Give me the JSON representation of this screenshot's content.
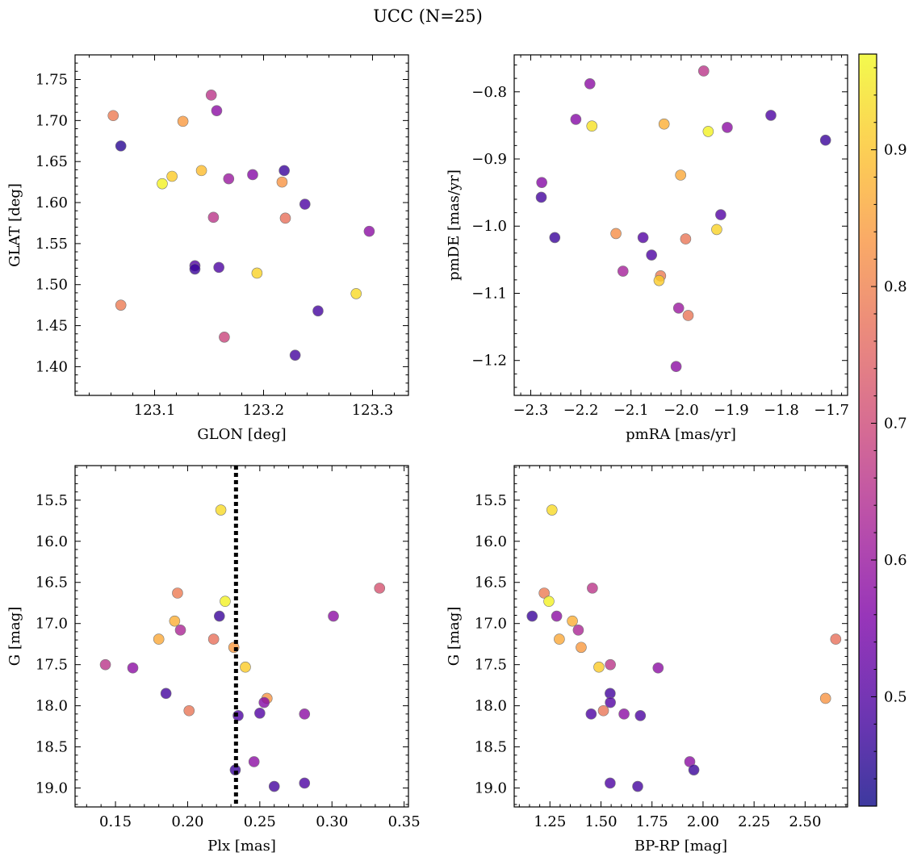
{
  "title": "UCC (N=25)",
  "colorbar": {
    "vmin": 0.42,
    "vmax": 0.97,
    "ticks": [
      0.5,
      0.6,
      0.7,
      0.8,
      0.9
    ],
    "tick_labels": [
      "0.5",
      "0.6",
      "0.7",
      "0.8",
      "0.9"
    ],
    "colormap": "plasma"
  },
  "chart_data": [
    {
      "type": "scatter",
      "id": "glon-glat",
      "xlabel": "GLON [deg]",
      "ylabel": "GLAT [deg]",
      "xlim": [
        123.027,
        123.333
      ],
      "ylim": [
        1.365,
        1.78
      ],
      "y_inverted": false,
      "xticks": [
        123.1,
        123.2,
        123.3
      ],
      "xtick_labels": [
        "123.1",
        "123.2",
        "123.3"
      ],
      "yticks": [
        1.4,
        1.45,
        1.5,
        1.55,
        1.6,
        1.65,
        1.7,
        1.75
      ],
      "ytick_labels": [
        "1.40",
        "1.45",
        "1.50",
        "1.55",
        "1.60",
        "1.65",
        "1.70",
        "1.75"
      ],
      "vline": null,
      "points": [
        {
          "x": 123.062,
          "y": 1.706,
          "c": 0.79
        },
        {
          "x": 123.069,
          "y": 1.669,
          "c": 0.45
        },
        {
          "x": 123.126,
          "y": 1.699,
          "c": 0.84
        },
        {
          "x": 123.152,
          "y": 1.731,
          "c": 0.66
        },
        {
          "x": 123.157,
          "y": 1.712,
          "c": 0.58
        },
        {
          "x": 123.107,
          "y": 1.623,
          "c": 0.96
        },
        {
          "x": 123.116,
          "y": 1.632,
          "c": 0.91
        },
        {
          "x": 123.143,
          "y": 1.639,
          "c": 0.89
        },
        {
          "x": 123.168,
          "y": 1.629,
          "c": 0.6
        },
        {
          "x": 123.19,
          "y": 1.634,
          "c": 0.57
        },
        {
          "x": 123.219,
          "y": 1.639,
          "c": 0.47
        },
        {
          "x": 123.217,
          "y": 1.625,
          "c": 0.83
        },
        {
          "x": 123.154,
          "y": 1.582,
          "c": 0.66
        },
        {
          "x": 123.22,
          "y": 1.581,
          "c": 0.77
        },
        {
          "x": 123.238,
          "y": 1.598,
          "c": 0.49
        },
        {
          "x": 123.297,
          "y": 1.565,
          "c": 0.58
        },
        {
          "x": 123.137,
          "y": 1.523,
          "c": 0.5
        },
        {
          "x": 123.137,
          "y": 1.519,
          "c": 0.47
        },
        {
          "x": 123.159,
          "y": 1.521,
          "c": 0.49
        },
        {
          "x": 123.194,
          "y": 1.514,
          "c": 0.92
        },
        {
          "x": 123.069,
          "y": 1.475,
          "c": 0.79
        },
        {
          "x": 123.285,
          "y": 1.489,
          "c": 0.93
        },
        {
          "x": 123.25,
          "y": 1.468,
          "c": 0.48
        },
        {
          "x": 123.164,
          "y": 1.436,
          "c": 0.69
        },
        {
          "x": 123.229,
          "y": 1.414,
          "c": 0.48
        }
      ]
    },
    {
      "type": "scatter",
      "id": "pm",
      "xlabel": "pmRA [mas/yr]",
      "ylabel": "pmDE [mas/yr]",
      "xlim": [
        -2.333,
        -1.668
      ],
      "ylim": [
        -1.252,
        -0.745
      ],
      "y_inverted": false,
      "xticks": [
        -2.3,
        -2.2,
        -2.1,
        -2.0,
        -1.9,
        -1.8,
        -1.7
      ],
      "xtick_labels": [
        "−2.3",
        "−2.2",
        "−2.1",
        "−2.0",
        "−1.9",
        "−1.8",
        "−1.7"
      ],
      "yticks": [
        -1.2,
        -1.1,
        -1.0,
        -0.9,
        -0.8
      ],
      "ytick_labels": [
        "−1.2",
        "−1.1",
        "−1.0",
        "−0.9",
        "−0.8"
      ],
      "vline": null,
      "points": [
        {
          "x": -1.955,
          "y": -0.769,
          "c": 0.66
        },
        {
          "x": -2.182,
          "y": -0.788,
          "c": 0.58
        },
        {
          "x": -2.21,
          "y": -0.841,
          "c": 0.57
        },
        {
          "x": -2.178,
          "y": -0.851,
          "c": 0.94
        },
        {
          "x": -2.034,
          "y": -0.848,
          "c": 0.87
        },
        {
          "x": -1.946,
          "y": -0.859,
          "c": 0.96
        },
        {
          "x": -1.908,
          "y": -0.853,
          "c": 0.58
        },
        {
          "x": -1.821,
          "y": -0.835,
          "c": 0.49
        },
        {
          "x": -1.712,
          "y": -0.872,
          "c": 0.47
        },
        {
          "x": -2.001,
          "y": -0.924,
          "c": 0.86
        },
        {
          "x": -2.278,
          "y": -0.935,
          "c": 0.57
        },
        {
          "x": -2.279,
          "y": -0.957,
          "c": 0.48
        },
        {
          "x": -1.921,
          "y": -0.983,
          "c": 0.5
        },
        {
          "x": -1.929,
          "y": -1.005,
          "c": 0.92
        },
        {
          "x": -2.252,
          "y": -1.017,
          "c": 0.47
        },
        {
          "x": -2.13,
          "y": -1.011,
          "c": 0.82
        },
        {
          "x": -2.076,
          "y": -1.017,
          "c": 0.5
        },
        {
          "x": -1.991,
          "y": -1.019,
          "c": 0.78
        },
        {
          "x": -2.059,
          "y": -1.043,
          "c": 0.49
        },
        {
          "x": -2.116,
          "y": -1.067,
          "c": 0.62
        },
        {
          "x": -2.041,
          "y": -1.074,
          "c": 0.79
        },
        {
          "x": -2.044,
          "y": -1.081,
          "c": 0.91
        },
        {
          "x": -2.005,
          "y": -1.122,
          "c": 0.6
        },
        {
          "x": -1.986,
          "y": -1.133,
          "c": 0.78
        },
        {
          "x": -2.01,
          "y": -1.209,
          "c": 0.58
        }
      ]
    },
    {
      "type": "scatter",
      "id": "plx-g",
      "xlabel": "Plx [mas]",
      "ylabel": "G [mag]",
      "xlim": [
        0.122,
        0.353
      ],
      "ylim": [
        19.23,
        15.08
      ],
      "y_inverted": true,
      "xticks": [
        0.15,
        0.2,
        0.25,
        0.3,
        0.35
      ],
      "xtick_labels": [
        "0.15",
        "0.20",
        "0.25",
        "0.30",
        "0.35"
      ],
      "yticks": [
        15.5,
        16.0,
        16.5,
        17.0,
        17.5,
        18.0,
        18.5,
        19.0
      ],
      "ytick_labels": [
        "15.5",
        "16.0",
        "16.5",
        "17.0",
        "17.5",
        "18.0",
        "18.5",
        "19.0"
      ],
      "vline": 0.2335,
      "points": [
        {
          "x": 0.223,
          "y": 15.62,
          "c": 0.93
        },
        {
          "x": 0.333,
          "y": 16.57,
          "c": 0.72
        },
        {
          "x": 0.193,
          "y": 16.63,
          "c": 0.79
        },
        {
          "x": 0.226,
          "y": 16.73,
          "c": 0.96
        },
        {
          "x": 0.222,
          "y": 16.91,
          "c": 0.47
        },
        {
          "x": 0.301,
          "y": 16.91,
          "c": 0.58
        },
        {
          "x": 0.191,
          "y": 16.97,
          "c": 0.87
        },
        {
          "x": 0.195,
          "y": 17.08,
          "c": 0.63
        },
        {
          "x": 0.18,
          "y": 17.19,
          "c": 0.86
        },
        {
          "x": 0.218,
          "y": 17.19,
          "c": 0.77
        },
        {
          "x": 0.232,
          "y": 17.29,
          "c": 0.84
        },
        {
          "x": 0.143,
          "y": 17.5,
          "c": 0.66
        },
        {
          "x": 0.162,
          "y": 17.54,
          "c": 0.58
        },
        {
          "x": 0.24,
          "y": 17.53,
          "c": 0.91
        },
        {
          "x": 0.185,
          "y": 17.85,
          "c": 0.48
        },
        {
          "x": 0.255,
          "y": 17.91,
          "c": 0.83
        },
        {
          "x": 0.253,
          "y": 17.96,
          "c": 0.57
        },
        {
          "x": 0.201,
          "y": 18.06,
          "c": 0.78
        },
        {
          "x": 0.235,
          "y": 18.12,
          "c": 0.49
        },
        {
          "x": 0.25,
          "y": 18.09,
          "c": 0.5
        },
        {
          "x": 0.281,
          "y": 18.1,
          "c": 0.58
        },
        {
          "x": 0.246,
          "y": 18.68,
          "c": 0.58
        },
        {
          "x": 0.233,
          "y": 18.78,
          "c": 0.47
        },
        {
          "x": 0.281,
          "y": 18.94,
          "c": 0.49
        },
        {
          "x": 0.26,
          "y": 18.98,
          "c": 0.48
        }
      ]
    },
    {
      "type": "scatter",
      "id": "bprp-g",
      "xlabel": "BP-RP [mag]",
      "ylabel": "G [mag]",
      "xlim": [
        1.075,
        2.708
      ],
      "ylim": [
        19.23,
        15.08
      ],
      "y_inverted": true,
      "xticks": [
        1.25,
        1.5,
        1.75,
        2.0,
        2.25,
        2.5
      ],
      "xtick_labels": [
        "1.25",
        "1.50",
        "1.75",
        "2.00",
        "2.25",
        "2.50"
      ],
      "yticks": [
        15.5,
        16.0,
        16.5,
        17.0,
        17.5,
        18.0,
        18.5,
        19.0
      ],
      "ytick_labels": [
        "15.5",
        "16.0",
        "16.5",
        "17.0",
        "17.5",
        "18.0",
        "18.5",
        "19.0"
      ],
      "vline": null,
      "points": [
        {
          "x": 1.26,
          "y": 15.62,
          "c": 0.93
        },
        {
          "x": 1.458,
          "y": 16.57,
          "c": 0.66
        },
        {
          "x": 1.222,
          "y": 16.63,
          "c": 0.79
        },
        {
          "x": 1.245,
          "y": 16.73,
          "c": 0.96
        },
        {
          "x": 1.163,
          "y": 16.91,
          "c": 0.47
        },
        {
          "x": 1.283,
          "y": 16.91,
          "c": 0.58
        },
        {
          "x": 1.36,
          "y": 16.97,
          "c": 0.87
        },
        {
          "x": 1.389,
          "y": 17.08,
          "c": 0.63
        },
        {
          "x": 1.296,
          "y": 17.19,
          "c": 0.86
        },
        {
          "x": 2.65,
          "y": 17.19,
          "c": 0.77
        },
        {
          "x": 1.403,
          "y": 17.29,
          "c": 0.84
        },
        {
          "x": 1.546,
          "y": 17.5,
          "c": 0.66
        },
        {
          "x": 1.49,
          "y": 17.53,
          "c": 0.91
        },
        {
          "x": 1.78,
          "y": 17.54,
          "c": 0.58
        },
        {
          "x": 1.545,
          "y": 17.85,
          "c": 0.48
        },
        {
          "x": 1.546,
          "y": 17.96,
          "c": 0.5
        },
        {
          "x": 2.6,
          "y": 17.91,
          "c": 0.83
        },
        {
          "x": 1.512,
          "y": 18.06,
          "c": 0.78
        },
        {
          "x": 1.452,
          "y": 18.1,
          "c": 0.49
        },
        {
          "x": 1.613,
          "y": 18.1,
          "c": 0.58
        },
        {
          "x": 1.693,
          "y": 18.12,
          "c": 0.49
        },
        {
          "x": 1.935,
          "y": 18.68,
          "c": 0.58
        },
        {
          "x": 1.955,
          "y": 18.78,
          "c": 0.47
        },
        {
          "x": 1.545,
          "y": 18.94,
          "c": 0.49
        },
        {
          "x": 1.68,
          "y": 18.98,
          "c": 0.48
        }
      ]
    }
  ]
}
